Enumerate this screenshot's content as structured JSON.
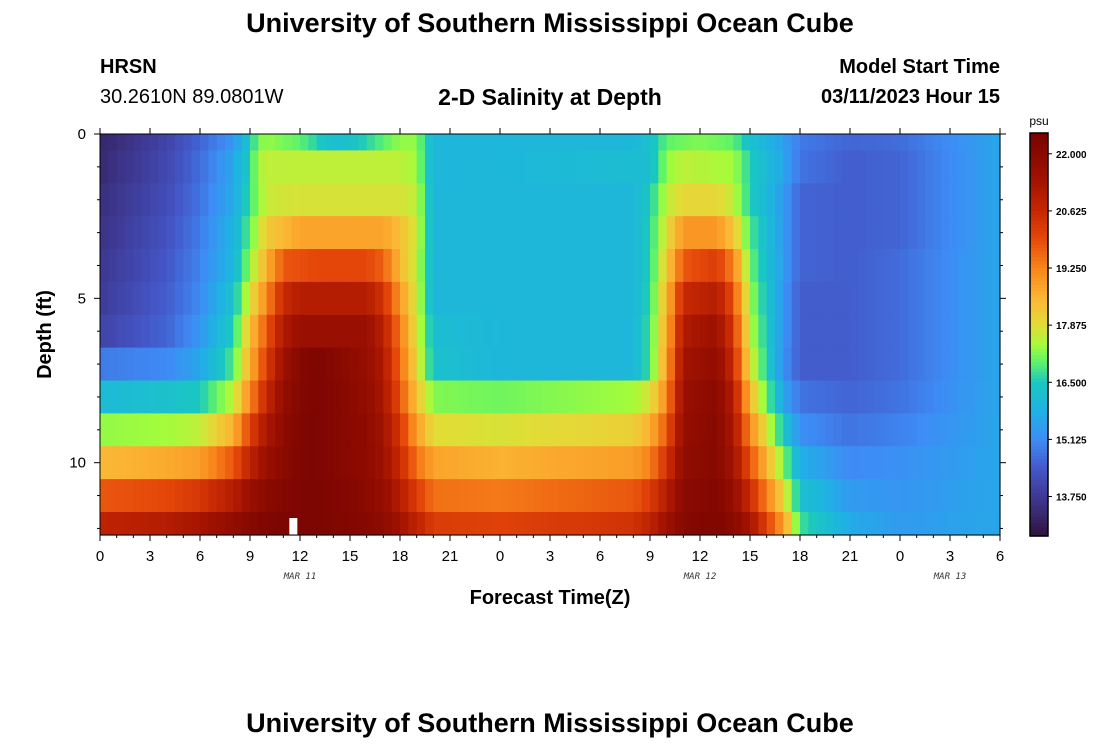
{
  "header": {
    "title": "University of Southern Mississippi Ocean Cube",
    "station": "HRSN",
    "coordinates": "30.2610N  89.0801W",
    "subtitle": "2-D Salinity at Depth",
    "model_start_label": "Model Start Time",
    "model_start_value": "03/11/2023 Hour 15"
  },
  "footer": {
    "title": "University of Southern Mississippi Ocean Cube"
  },
  "chart_data": {
    "type": "heatmap",
    "title": "2-D Salinity at Depth",
    "xlabel": "Forecast Time(Z)",
    "ylabel": "Depth (ft)",
    "x_range_hours": [
      0,
      54
    ],
    "y_range_ft": [
      0,
      12.2
    ],
    "y_inverted": true,
    "x_ticks": [
      {
        "h": 0,
        "label": "0"
      },
      {
        "h": 3,
        "label": "3"
      },
      {
        "h": 6,
        "label": "6"
      },
      {
        "h": 9,
        "label": "9"
      },
      {
        "h": 12,
        "label": "12"
      },
      {
        "h": 15,
        "label": "15"
      },
      {
        "h": 18,
        "label": "18"
      },
      {
        "h": 21,
        "label": "21"
      },
      {
        "h": 24,
        "label": "0"
      },
      {
        "h": 27,
        "label": "3"
      },
      {
        "h": 30,
        "label": "6"
      },
      {
        "h": 33,
        "label": "9"
      },
      {
        "h": 36,
        "label": "12"
      },
      {
        "h": 39,
        "label": "15"
      },
      {
        "h": 42,
        "label": "18"
      },
      {
        "h": 45,
        "label": "21"
      },
      {
        "h": 48,
        "label": "0"
      },
      {
        "h": 51,
        "label": "3"
      },
      {
        "h": 54,
        "label": "6"
      }
    ],
    "y_ticks": [
      {
        "v": 0,
        "label": "0"
      },
      {
        "v": 5,
        "label": "5"
      },
      {
        "v": 10,
        "label": "10"
      }
    ],
    "date_labels": [
      {
        "h": 12,
        "label": "MAR 11"
      },
      {
        "h": 36,
        "label": "MAR 12"
      },
      {
        "h": 51,
        "label": "MAR 13"
      }
    ],
    "marker_hour": 11.6,
    "depth_levels_ft": [
      0,
      1,
      2,
      3,
      4,
      5,
      6,
      7,
      8,
      9,
      10,
      11,
      12
    ],
    "colorbar": {
      "unit": "psu",
      "min": 12.8,
      "max": 22.5,
      "tick_values": [
        22.0,
        20.625,
        19.25,
        17.875,
        16.5,
        15.125,
        13.75
      ],
      "tick_labels": [
        "22.000",
        "20.625",
        "19.250",
        "17.875",
        "16.500",
        "15.125",
        "13.750"
      ],
      "stops": [
        [
          12.8,
          "#30123b"
        ],
        [
          13.75,
          "#3e3994"
        ],
        [
          14.4,
          "#4456c7"
        ],
        [
          15.125,
          "#3e8cf6"
        ],
        [
          15.8,
          "#1fb1e4"
        ],
        [
          16.5,
          "#1ac7c2"
        ],
        [
          17.0,
          "#5ef36a"
        ],
        [
          17.4,
          "#a4fc3b"
        ],
        [
          17.875,
          "#e1dd37"
        ],
        [
          18.5,
          "#fbb835"
        ],
        [
          19.25,
          "#f8861b"
        ],
        [
          20.0,
          "#e4460a"
        ],
        [
          20.625,
          "#c62803"
        ],
        [
          21.4,
          "#a11201"
        ],
        [
          22.0,
          "#8a0a00"
        ],
        [
          22.5,
          "#7a0403"
        ]
      ]
    },
    "salinity_series": [
      {
        "depth_ft": 0,
        "hours": [
          0,
          4,
          6,
          8,
          9,
          9.5,
          10,
          12,
          14,
          15,
          18,
          19,
          19.5,
          20,
          24,
          32,
          33,
          34,
          35,
          36,
          38,
          39,
          41,
          42,
          45,
          48,
          54
        ],
        "psu": [
          13.3,
          14.0,
          14.6,
          15.3,
          16.4,
          17.2,
          17.3,
          17.0,
          16.2,
          16.3,
          17.3,
          17.3,
          16.6,
          16.0,
          16.0,
          16.0,
          16.3,
          17.0,
          17.1,
          17.2,
          17.0,
          16.3,
          15.5,
          14.9,
          14.6,
          14.7,
          15.6
        ]
      },
      {
        "depth_ft": 1,
        "hours": [
          0,
          4,
          6,
          8,
          9,
          9.5,
          10,
          18,
          19,
          19.5,
          20,
          24,
          33,
          34,
          35,
          38,
          39,
          41,
          42,
          45,
          48,
          54
        ],
        "psu": [
          13.4,
          14.1,
          14.7,
          15.6,
          16.6,
          17.5,
          17.6,
          17.6,
          17.4,
          16.6,
          16.0,
          16.0,
          16.2,
          17.3,
          17.6,
          17.4,
          16.6,
          15.6,
          14.8,
          14.5,
          14.6,
          15.6
        ]
      },
      {
        "depth_ft": 2,
        "hours": [
          0,
          4,
          6,
          8,
          9,
          10,
          12,
          18,
          19,
          20,
          24,
          32,
          33,
          34,
          35,
          37,
          38,
          39,
          41,
          42,
          45,
          48,
          54
        ],
        "psu": [
          13.5,
          14.2,
          14.8,
          15.7,
          16.8,
          17.7,
          17.8,
          17.8,
          17.6,
          16.0,
          16.0,
          16.0,
          16.5,
          17.6,
          18.0,
          18.0,
          17.6,
          16.6,
          15.4,
          14.6,
          14.5,
          14.6,
          15.6
        ]
      },
      {
        "depth_ft": 3,
        "hours": [
          0,
          4,
          6,
          8,
          9,
          10,
          12,
          17,
          18,
          19,
          20,
          24,
          32,
          33,
          34,
          35,
          37,
          38,
          39,
          41,
          42,
          45,
          48,
          54
        ],
        "psu": [
          13.6,
          14.3,
          14.9,
          15.9,
          17.0,
          18.2,
          18.8,
          18.8,
          18.4,
          17.7,
          16.0,
          16.0,
          16.0,
          16.6,
          17.9,
          19.0,
          19.0,
          18.3,
          16.9,
          15.4,
          14.6,
          14.5,
          14.6,
          15.6
        ]
      },
      {
        "depth_ft": 4,
        "hours": [
          0,
          4,
          6,
          8,
          9,
          10,
          11,
          13,
          16,
          17,
          18,
          19,
          20,
          24,
          32,
          33,
          34,
          35,
          37,
          38,
          39,
          41,
          42,
          45,
          48,
          54
        ],
        "psu": [
          13.7,
          14.4,
          15.0,
          16.0,
          17.3,
          18.6,
          19.8,
          20.0,
          20.0,
          19.7,
          18.5,
          17.6,
          16.0,
          16.0,
          16.0,
          16.6,
          18.2,
          19.8,
          20.2,
          19.3,
          17.1,
          15.4,
          14.6,
          14.5,
          14.7,
          15.6
        ]
      },
      {
        "depth_ft": 5,
        "hours": [
          0,
          4,
          6,
          8,
          9,
          10,
          11,
          12,
          16,
          17,
          18,
          19,
          20,
          24,
          32,
          33,
          34,
          35,
          37,
          38,
          39,
          41,
          42,
          45,
          48,
          54
        ],
        "psu": [
          13.8,
          14.5,
          15.1,
          16.3,
          17.8,
          19.2,
          20.6,
          21.0,
          21.0,
          20.4,
          19.0,
          17.7,
          16.0,
          16.0,
          16.0,
          16.7,
          18.5,
          20.6,
          21.0,
          19.9,
          17.4,
          15.3,
          14.5,
          14.5,
          14.7,
          15.6
        ]
      },
      {
        "depth_ft": 6,
        "hours": [
          0,
          4,
          6,
          8,
          9,
          10,
          11,
          12,
          16,
          17,
          18,
          19,
          20,
          24,
          32,
          33,
          34,
          35,
          37,
          38,
          39,
          41,
          42,
          45,
          48,
          54
        ],
        "psu": [
          14.0,
          14.6,
          15.3,
          16.6,
          18.3,
          19.8,
          21.1,
          21.6,
          21.6,
          20.9,
          19.4,
          17.8,
          16.2,
          16.0,
          16.0,
          16.8,
          18.7,
          21.1,
          21.5,
          20.3,
          17.6,
          15.3,
          14.5,
          14.5,
          14.7,
          15.6
        ]
      },
      {
        "depth_ft": 7,
        "hours": [
          0,
          4,
          6,
          8,
          9,
          10,
          11,
          12,
          13,
          14,
          16,
          17,
          18,
          19,
          20,
          24,
          32,
          33,
          34,
          35,
          37,
          38,
          39,
          41,
          42,
          45,
          48,
          54
        ],
        "psu": [
          14.9,
          15.1,
          15.6,
          16.9,
          18.6,
          20.2,
          21.5,
          22.1,
          22.4,
          22.1,
          21.7,
          21.1,
          19.6,
          18.0,
          16.3,
          16.0,
          16.0,
          16.8,
          18.9,
          21.4,
          21.8,
          20.6,
          17.9,
          15.2,
          14.5,
          14.5,
          14.7,
          15.6
        ]
      },
      {
        "depth_ft": 8,
        "hours": [
          0,
          4,
          6,
          8,
          9,
          10,
          11,
          12,
          13,
          14,
          16,
          17,
          18,
          19,
          20,
          24,
          32,
          33,
          34,
          35,
          37,
          38,
          39,
          41,
          42,
          45,
          48,
          54
        ],
        "psu": [
          16.1,
          16.3,
          16.5,
          17.6,
          19.2,
          20.7,
          21.7,
          22.2,
          22.4,
          22.2,
          21.8,
          21.2,
          19.9,
          18.3,
          17.2,
          17.1,
          17.4,
          17.8,
          19.2,
          21.6,
          22.0,
          21.0,
          18.5,
          15.6,
          14.8,
          14.6,
          14.8,
          15.6
        ]
      },
      {
        "depth_ft": 9,
        "hours": [
          0,
          4,
          6,
          8,
          9,
          10,
          11,
          12,
          13,
          14,
          16,
          17,
          18,
          19,
          20,
          24,
          32,
          33,
          34,
          35,
          37,
          38,
          39,
          41,
          42,
          45,
          48,
          54
        ],
        "psu": [
          17.3,
          17.4,
          17.6,
          18.6,
          20.1,
          21.2,
          21.9,
          22.3,
          22.4,
          22.2,
          21.9,
          21.4,
          20.3,
          18.9,
          17.9,
          17.8,
          18.1,
          18.6,
          19.8,
          21.7,
          22.1,
          21.2,
          19.2,
          16.4,
          15.2,
          14.8,
          15.0,
          15.6
        ]
      },
      {
        "depth_ft": 10,
        "hours": [
          0,
          4,
          6,
          8,
          9,
          10,
          11,
          12,
          13,
          14,
          16,
          17,
          18,
          19,
          20,
          24,
          32,
          33,
          34,
          35,
          37,
          38,
          39,
          41,
          42,
          45,
          48,
          54
        ],
        "psu": [
          18.5,
          18.7,
          18.9,
          19.8,
          20.8,
          21.6,
          22.0,
          22.3,
          22.4,
          22.2,
          21.9,
          21.5,
          20.6,
          19.5,
          18.8,
          18.6,
          18.9,
          19.3,
          20.4,
          21.8,
          22.1,
          21.4,
          19.9,
          17.2,
          15.8,
          15.1,
          15.2,
          15.6
        ]
      },
      {
        "depth_ft": 11,
        "hours": [
          0,
          4,
          6,
          8,
          9,
          10,
          11,
          12,
          13,
          14,
          16,
          17,
          18,
          19,
          20,
          24,
          32,
          33,
          34,
          35,
          37,
          38,
          39,
          41,
          42,
          45,
          48,
          54
        ],
        "psu": [
          19.8,
          20.0,
          20.3,
          21.0,
          21.6,
          22.0,
          22.2,
          22.4,
          22.4,
          22.3,
          22.0,
          21.7,
          21.0,
          20.2,
          19.5,
          19.4,
          19.8,
          20.2,
          21.0,
          22.0,
          22.2,
          21.7,
          20.6,
          18.0,
          16.3,
          15.4,
          15.3,
          15.6
        ]
      },
      {
        "depth_ft": 12,
        "hours": [
          0,
          4,
          6,
          8,
          9,
          10,
          11,
          12,
          13,
          14,
          16,
          17,
          18,
          19,
          20,
          24,
          32,
          33,
          34,
          35,
          37,
          38,
          39,
          41,
          42,
          45,
          48,
          54
        ],
        "psu": [
          20.8,
          21.0,
          21.3,
          21.8,
          22.1,
          22.3,
          22.4,
          22.4,
          22.4,
          22.3,
          22.1,
          21.9,
          21.4,
          20.8,
          20.2,
          20.1,
          20.4,
          20.8,
          21.5,
          22.1,
          22.3,
          22.0,
          21.3,
          18.9,
          16.8,
          15.7,
          15.4,
          15.6
        ]
      }
    ]
  }
}
